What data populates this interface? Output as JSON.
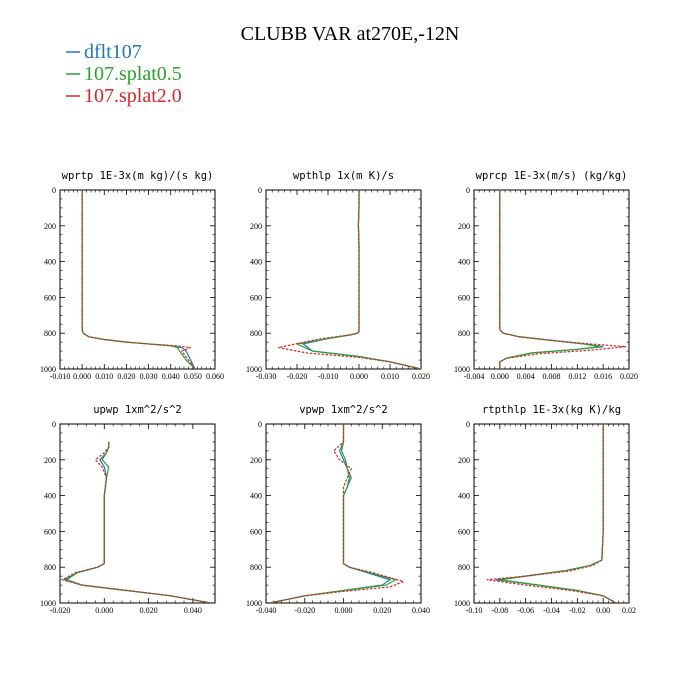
{
  "title": "CLUBB VAR at270E,-12N",
  "legend": [
    {
      "name": "dflt107",
      "color": "#1f77b4"
    },
    {
      "name": "107.splat0.5",
      "color": "#2ca02c"
    },
    {
      "name": "107.splat2.0",
      "color": "#d62728"
    }
  ],
  "chart_data": [
    {
      "type": "line",
      "title": "wprtp  1E-3x(m kg)/(s kg)",
      "xlim": [
        -0.01,
        0.06
      ],
      "ylim": [
        0,
        1000
      ],
      "y_inverted": true,
      "xticks": [
        "-0.010",
        "0.000",
        "0.010",
        "0.020",
        "0.030",
        "0.040",
        "0.050",
        "0.060"
      ],
      "yticks": [
        "0",
        "200",
        "400",
        "600",
        "800",
        "1000"
      ],
      "series": [
        {
          "name": "dflt107",
          "x": [
            0,
            0,
            0,
            0,
            0,
            0.0005,
            0.003,
            0.01,
            0.02,
            0.03,
            0.04,
            0.045,
            0.047,
            0.049,
            0.051
          ],
          "y": [
            0,
            200,
            400,
            600,
            780,
            800,
            820,
            835,
            850,
            860,
            870,
            880,
            900,
            950,
            1000
          ]
        },
        {
          "name": "107.splat0.5",
          "x": [
            0,
            0,
            0,
            0,
            0,
            0.0005,
            0.003,
            0.01,
            0.02,
            0.03,
            0.04,
            0.043,
            0.044,
            0.047,
            0.051
          ],
          "y": [
            0,
            200,
            400,
            600,
            780,
            800,
            820,
            835,
            850,
            860,
            870,
            880,
            900,
            950,
            1000
          ]
        },
        {
          "name": "107.splat2.0",
          "x": [
            0,
            0,
            0,
            0,
            0,
            0.0005,
            0.003,
            0.01,
            0.02,
            0.03,
            0.042,
            0.049,
            0.045,
            0.048,
            0.051
          ],
          "y": [
            0,
            200,
            400,
            600,
            780,
            800,
            820,
            835,
            850,
            860,
            870,
            880,
            900,
            950,
            1000
          ]
        }
      ]
    },
    {
      "type": "line",
      "title": "wpthlp  1x(m K)/s",
      "xlim": [
        -0.03,
        0.02
      ],
      "ylim": [
        0,
        1000
      ],
      "y_inverted": true,
      "xticks": [
        "-0.030",
        "-0.020",
        "-0.010",
        "0.000",
        "0.010",
        "0.020"
      ],
      "yticks": [
        "0",
        "200",
        "400",
        "600",
        "800",
        "1000"
      ],
      "series": [
        {
          "name": "dflt107",
          "x": [
            0,
            0,
            -0.0002,
            0,
            0,
            0,
            -0.0005,
            -0.003,
            -0.01,
            -0.018,
            -0.015,
            0,
            0.01,
            0.02
          ],
          "y": [
            0,
            100,
            200,
            300,
            600,
            790,
            800,
            810,
            830,
            860,
            900,
            930,
            960,
            1000
          ]
        },
        {
          "name": "107.splat0.5",
          "x": [
            0,
            0,
            -0.0002,
            0,
            0,
            0,
            -0.0005,
            -0.003,
            -0.01,
            -0.02,
            -0.015,
            0,
            0.01,
            0.02
          ],
          "y": [
            0,
            100,
            200,
            300,
            600,
            790,
            800,
            810,
            830,
            860,
            900,
            930,
            960,
            1000
          ]
        },
        {
          "name": "107.splat2.0",
          "x": [
            0,
            0,
            -0.0002,
            0,
            0,
            0,
            -0.0005,
            -0.003,
            -0.012,
            -0.026,
            -0.017,
            0,
            0.01,
            0.02
          ],
          "y": [
            0,
            100,
            200,
            300,
            600,
            790,
            800,
            810,
            830,
            880,
            910,
            935,
            960,
            1000
          ]
        }
      ]
    },
    {
      "type": "line",
      "title": "wprcp  1E-3x(m/s) (kg/kg)",
      "xlim": [
        -0.004,
        0.02
      ],
      "ylim": [
        0,
        1000
      ],
      "y_inverted": true,
      "xticks": [
        "-0.004",
        "0.000",
        "0.004",
        "0.008",
        "0.012",
        "0.016",
        "0.020"
      ],
      "yticks": [
        "0",
        "200",
        "400",
        "600",
        "800",
        "1000"
      ],
      "series": [
        {
          "name": "dflt107",
          "x": [
            0,
            0,
            0,
            0,
            0,
            0.0005,
            0.003,
            0.008,
            0.013,
            0.016,
            0.012,
            0.005,
            0.001,
            0,
            0
          ],
          "y": [
            0,
            200,
            400,
            600,
            780,
            800,
            820,
            840,
            860,
            875,
            890,
            910,
            940,
            960,
            1000
          ]
        },
        {
          "name": "107.splat0.5",
          "x": [
            0,
            0,
            0,
            0,
            0,
            0.0005,
            0.003,
            0.008,
            0.013,
            0.0155,
            0.012,
            0.005,
            0.001,
            0,
            0
          ],
          "y": [
            0,
            200,
            400,
            600,
            780,
            800,
            820,
            840,
            860,
            875,
            890,
            910,
            940,
            960,
            1000
          ]
        },
        {
          "name": "107.splat2.0",
          "x": [
            0,
            0,
            0,
            0,
            0,
            0.0005,
            0.003,
            0.008,
            0.014,
            0.0195,
            0.014,
            0.006,
            0.001,
            0,
            0
          ],
          "y": [
            0,
            200,
            400,
            600,
            780,
            800,
            820,
            840,
            860,
            875,
            895,
            915,
            940,
            960,
            1000
          ]
        }
      ]
    },
    {
      "type": "line",
      "title": "upwp  1xm^2/s^2",
      "xlim": [
        -0.02,
        0.05
      ],
      "ylim": [
        0,
        1000
      ],
      "y_inverted": true,
      "xticks": [
        "-0.020",
        "0.000",
        "0.020",
        "0.040"
      ],
      "yticks": [
        "0",
        "200",
        "400",
        "600",
        "800",
        "1000"
      ],
      "series": [
        {
          "name": "dflt107",
          "x": [
            0.002,
            0.002,
            0.001,
            -0.002,
            0,
            0.001,
            0,
            0,
            0,
            -0.003,
            -0.012,
            -0.018,
            -0.01,
            0.01,
            0.03,
            0.048
          ],
          "y": [
            100,
            130,
            160,
            200,
            240,
            300,
            400,
            600,
            780,
            800,
            830,
            870,
            900,
            930,
            960,
            1000
          ]
        },
        {
          "name": "107.splat0.5",
          "x": [
            0.002,
            0.002,
            0.001,
            -0.001,
            0.002,
            0.001,
            0,
            0,
            0,
            -0.003,
            -0.012,
            -0.017,
            -0.01,
            0.01,
            0.03,
            0.048
          ],
          "y": [
            100,
            130,
            160,
            200,
            240,
            300,
            400,
            600,
            780,
            800,
            830,
            870,
            900,
            930,
            960,
            1000
          ]
        },
        {
          "name": "107.splat2.0",
          "x": [
            0.002,
            0.002,
            0,
            -0.004,
            -0.001,
            0.001,
            0,
            0,
            0,
            -0.003,
            -0.013,
            -0.019,
            -0.01,
            0.01,
            0.03,
            0.048
          ],
          "y": [
            100,
            130,
            160,
            200,
            240,
            300,
            400,
            600,
            780,
            800,
            830,
            870,
            900,
            930,
            960,
            1000
          ]
        }
      ]
    },
    {
      "type": "line",
      "title": "vpwp  1xm^2/s^2",
      "xlim": [
        -0.04,
        0.04
      ],
      "ylim": [
        0,
        1000
      ],
      "y_inverted": true,
      "xticks": [
        "-0.040",
        "-0.020",
        "0.000",
        "0.020",
        "0.040"
      ],
      "yticks": [
        "0",
        "200",
        "400",
        "600",
        "800",
        "1000"
      ],
      "series": [
        {
          "name": "dflt107",
          "x": [
            0,
            0,
            -0.002,
            0,
            0.002,
            0.004,
            0.002,
            0,
            0,
            0,
            0.003,
            0.012,
            0.024,
            0.02,
            0,
            -0.02,
            -0.038
          ],
          "y": [
            0,
            100,
            150,
            200,
            250,
            300,
            350,
            400,
            600,
            780,
            800,
            830,
            870,
            900,
            930,
            960,
            1000
          ]
        },
        {
          "name": "107.splat0.5",
          "x": [
            0,
            0,
            -0.001,
            0.001,
            0.002,
            0.003,
            0.002,
            0,
            0,
            0,
            0.003,
            0.013,
            0.027,
            0.022,
            0,
            -0.02,
            -0.038
          ],
          "y": [
            0,
            100,
            150,
            200,
            250,
            300,
            350,
            400,
            600,
            780,
            800,
            830,
            870,
            900,
            930,
            960,
            1000
          ]
        },
        {
          "name": "107.splat2.0",
          "x": [
            0,
            0,
            -0.005,
            -0.002,
            0.004,
            0.002,
            0,
            0,
            0,
            0,
            0.003,
            0.015,
            0.031,
            0.024,
            0,
            -0.02,
            -0.038
          ],
          "y": [
            0,
            100,
            150,
            200,
            250,
            300,
            350,
            400,
            600,
            780,
            800,
            830,
            880,
            910,
            935,
            960,
            1000
          ]
        }
      ]
    },
    {
      "type": "line",
      "title": "rtpthlp  1E-3x(kg K)/kg",
      "xlim": [
        -0.1,
        0.02
      ],
      "ylim": [
        0,
        1000
      ],
      "y_inverted": true,
      "xticks": [
        "-0.10",
        "-0.08",
        "-0.06",
        "-0.04",
        "-0.02",
        "0.00",
        "0.02"
      ],
      "yticks": [
        "0",
        "200",
        "400",
        "600",
        "800",
        "1000"
      ],
      "series": [
        {
          "name": "dflt107",
          "x": [
            0,
            0,
            0,
            0,
            -0.001,
            -0.01,
            -0.03,
            -0.06,
            -0.083,
            -0.05,
            -0.02,
            0,
            0.01
          ],
          "y": [
            0,
            200,
            400,
            600,
            760,
            790,
            820,
            850,
            870,
            900,
            930,
            960,
            1000
          ]
        },
        {
          "name": "107.splat0.5",
          "x": [
            0,
            0,
            0,
            0,
            -0.001,
            -0.01,
            -0.03,
            -0.06,
            -0.08,
            -0.05,
            -0.02,
            0,
            0.01
          ],
          "y": [
            0,
            200,
            400,
            600,
            760,
            790,
            820,
            850,
            870,
            900,
            930,
            960,
            1000
          ]
        },
        {
          "name": "107.splat2.0",
          "x": [
            0,
            0,
            0,
            0,
            -0.001,
            -0.008,
            -0.025,
            -0.06,
            -0.09,
            -0.06,
            -0.025,
            0,
            0.01
          ],
          "y": [
            0,
            200,
            400,
            600,
            760,
            790,
            820,
            850,
            870,
            900,
            930,
            960,
            1000
          ]
        }
      ]
    }
  ]
}
